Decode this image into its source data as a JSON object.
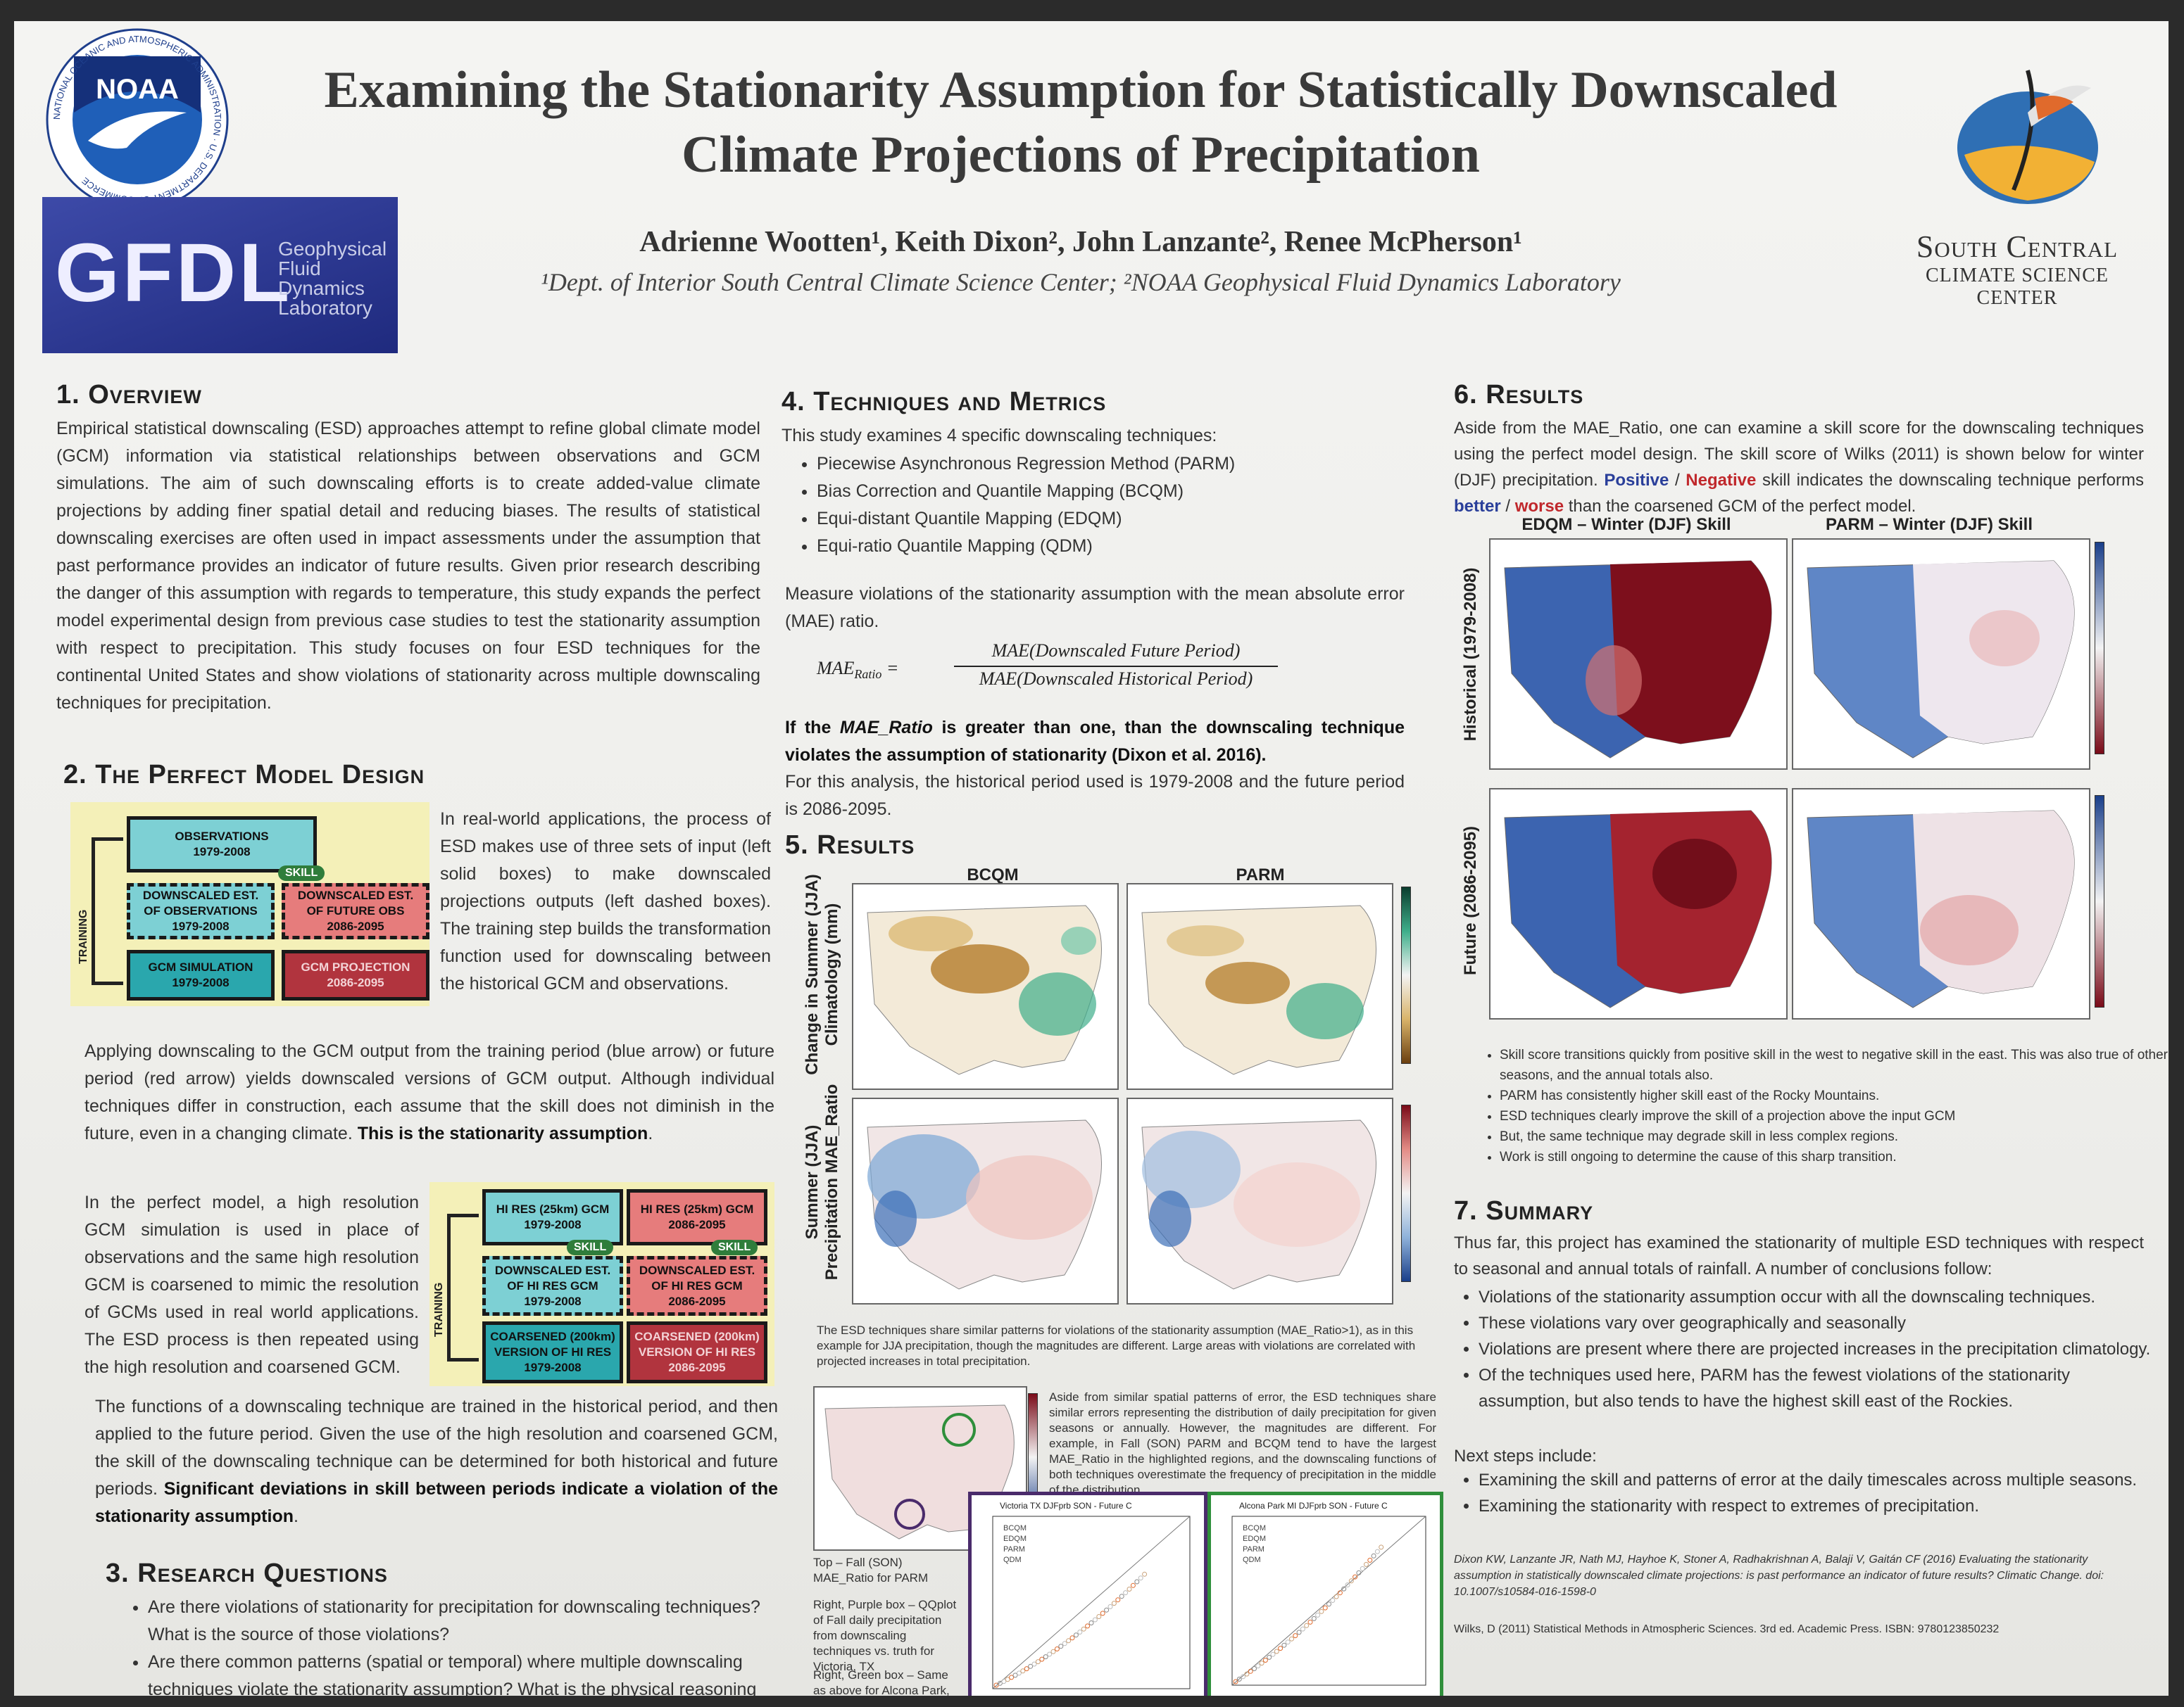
{
  "header": {
    "title_line1": "Examining the Stationarity Assumption for Statistically Downscaled",
    "title_line2": "Climate Projections of Precipitation",
    "authors": "Adrienne Wootten¹, Keith Dixon², John Lanzante², Renee McPherson¹",
    "affiliations": "¹Dept. of Interior South Central Climate Science Center; ²NOAA Geophysical Fluid Dynamics Laboratory"
  },
  "logos": {
    "noaa_text": "NOAA",
    "noaa_ring": "NATIONAL OCEANIC AND ATMOSPHERIC ADMINISTRATION · U.S. DEPARTMENT OF COMMERCE",
    "gfdl_text": "GFDL",
    "gfdl_line1": "Geophysical",
    "gfdl_line2": "Fluid",
    "gfdl_line3": "Dynamics",
    "gfdl_line4": "Laboratory",
    "sccsc_line1": "South Central",
    "sccsc_line2": "Climate Science Center"
  },
  "s1": {
    "heading": "1. Overview",
    "body": "Empirical statistical downscaling (ESD) approaches attempt to refine global climate model (GCM) information via statistical relationships between observations and GCM simulations. The aim of such downscaling efforts is to create added-value climate projections by adding finer spatial detail and reducing biases. The results of statistical downscaling exercises are often used in impact assessments under the assumption that past performance provides an indicator of future results. Given prior research describing the danger of this assumption with regards to temperature, this study expands the perfect model experimental design from previous case studies to test the stationarity assumption with respect to precipitation. This study focuses on four ESD techniques for the continental United States and show violations of stationarity across multiple downscaling techniques for precipitation."
  },
  "s2": {
    "heading": "2. The Perfect Model Design",
    "intro": "In real-world applications, the process of ESD makes use of three sets of input (left solid boxes) to make downscaled projections outputs (left dashed boxes). The training step builds the transformation function used for downscaling between the historical GCM and observations.",
    "para2_a": "Applying downscaling to the GCM output from the training period (blue arrow) or future period (red arrow) yields downscaled versions of GCM output. Although individual techniques differ in construction, each assume that the skill does not diminish in the future, even in a changing climate. ",
    "para2_b": "This is the stationarity assumption",
    "para2_c": ".",
    "para3": "In the perfect model, a high resolution GCM simulation is used in place of observations and the same high resolution GCM is coarsened to mimic the resolution of GCMs used in real world applications. The ESD process is then repeated using the high resolution and coarsened GCM.",
    "para4_a": "The functions of a downscaling technique are trained in the historical period, and then applied to the future period. Given the use of the high resolution and coarsened GCM, the skill of the downscaling technique can be determined for both historical and future periods. ",
    "para4_b": "Significant deviations in skill between periods indicate a violation of the stationarity assumption",
    "para4_c": ".",
    "diagram1": {
      "obs": "OBSERVATIONS\n1979-2008",
      "ds_obs": "DOWNSCALED EST.\nOF OBSERVATIONS\n1979-2008",
      "ds_fut": "DOWNSCALED EST.\nOF FUTURE OBS\n2086-2095",
      "gcm_sim": "GCM SIMULATION\n1979-2008",
      "gcm_proj": "GCM PROJECTION\n2086-2095",
      "skill": "SKILL",
      "training": "TRAINING"
    },
    "diagram2": {
      "hires_hist": "HI RES (25km) GCM\n1979-2008",
      "hires_fut": "HI RES (25km) GCM\n2086-2095",
      "ds_hist": "DOWNSCALED EST.\nOF HI RES GCM\n1979-2008",
      "ds_fut": "DOWNSCALED EST.\nOF HI RES GCM\n2086-2095",
      "coarse_hist": "COARSENED (200km)\nVERSION OF HI RES\n1979-2008",
      "coarse_fut": "COARSENED (200km)\nVERSION OF HI RES\n2086-2095",
      "skill": "SKILL",
      "training": "TRAINING"
    }
  },
  "s3": {
    "heading": "3. Research Questions",
    "items": [
      "Are there violations of stationarity for precipitation for downscaling techniques? What is the source of those violations?",
      "Are there common patterns (spatial or temporal) where multiple downscaling techniques violate the stationarity assumption? What is the physical reasoning behind these common patterns?"
    ]
  },
  "s4": {
    "heading": "4. Techniques and Metrics",
    "intro": "This study examines 4 specific downscaling techniques:",
    "items": [
      "Piecewise Asynchronous Regression Method (PARM)",
      "Bias Correction and Quantile Mapping (BCQM)",
      "Equi-distant Quantile Mapping (EDQM)",
      "Equi-ratio Quantile Mapping (QDM)"
    ],
    "measure": "Measure violations of the stationarity assumption with the mean absolute error (MAE) ratio.",
    "formula_lhs": "MAE",
    "formula_sub": "Ratio",
    "formula_num": "MAE(Downscaled Future Period)",
    "formula_den": "MAE(Downscaled Historical Period)",
    "rule_a": "If the ",
    "rule_b": "MAE_Ratio",
    "rule_c": " is greater than one, than the downscaling technique violates the assumption of stationarity (Dixon et al. 2016).",
    "periods": "For this analysis, the historical period used is 1979-2008 and the future period is 2086-2095."
  },
  "s5": {
    "heading": "5. Results",
    "col1": "BCQM",
    "col2": "PARM",
    "row1": "Change in Summer (JJA) Climatology (mm)",
    "row2": "Summer (JJA) Precipitation MAE_Ratio",
    "caption": "The ESD techniques share similar patterns for violations of the stationarity assumption (MAE_Ratio>1), as in this example for JJA precipitation, though the magnitudes are different. Large areas with violations are correlated with projected increases in total precipitation.",
    "side_text": "Aside from similar spatial patterns of error, the ESD techniques share similar errors representing the distribution of daily precipitation for given seasons or annually. However, the magnitudes are different. For example, in Fall (SON) PARM and BCQM tend to have the largest MAE_Ratio in the highlighted regions, and the downscaling functions of both techniques overestimate the frequency of precipitation in the middle of the distribution.",
    "top_label": "Top – Fall (SON) MAE_Ratio for PARM",
    "purple_label": "Right, Purple box – QQplot of Fall daily precipitation from downscaling techniques vs. truth for Victoria, TX",
    "green_label": "Right, Green box – Same as above for Alcona Park, MI",
    "qq_title1": "Victoria TX DJFprb SON - Future C",
    "qq_title2": "Alcona Park MI DJFprb SON - Future C",
    "qq_legend": [
      "BCQM",
      "EDQM",
      "PARM",
      "QDM"
    ]
  },
  "s6": {
    "heading": "6. Results",
    "intro_a": "Aside from the MAE_Ratio, one can examine a skill score for the downscaling techniques using the perfect model design. The skill score of Wilks (2011) is shown below for winter (DJF) precipitation. ",
    "positive": "Positive",
    "slash": " / ",
    "negative": "Negative",
    "intro_b": " skill indicates the downscaling technique performs ",
    "better": "better",
    "slash2": " / ",
    "worse": "worse",
    "intro_c": " than the coarsened GCM of the perfect model.",
    "col1": "EDQM – Winter (DJF) Skill",
    "col2": "PARM – Winter (DJF) Skill",
    "row1": "Historical (1979-2008)",
    "row2": "Future (2086-2095)",
    "items": [
      "Skill score transitions quickly from positive skill in the west to negative skill in the east. This was also true of other seasons, and the annual totals also.",
      "PARM has consistently higher skill east of the Rocky Mountains.",
      "ESD techniques clearly improve the skill of a projection above the input GCM",
      "But, the same technique may degrade skill in less complex regions.",
      "Work is still ongoing to determine the cause of this sharp transition."
    ]
  },
  "s7": {
    "heading": "7. Summary",
    "intro": "Thus far, this project has examined the stationarity of multiple ESD techniques with respect to seasonal and annual totals of rainfall. A number of conclusions follow:",
    "items": [
      "Violations of the stationarity assumption occur with all the downscaling techniques.",
      "These violations vary over geographically and seasonally",
      "Violations are present where there are projected increases in the precipitation climatology.",
      "Of the techniques used here, PARM has the fewest violations of the stationarity assumption, but also tends to have the highest skill east of the Rockies."
    ],
    "next": "Next steps include:",
    "next_items": [
      "Examining the skill and patterns of error at the daily timescales across multiple seasons.",
      "Examining the stationarity with respect to extremes of precipitation."
    ],
    "ref1": "Dixon KW, Lanzante JR, Nath MJ, Hayhoe K, Stoner A, Radhakrishnan A, Balaji V, Gaitán CF (2016) Evaluating the stationarity assumption in statistically downscaled climate projections: is past performance an indicator of future results? Climatic Change. doi: 10.1007/s10584-016-1598-0",
    "ref2": "Wilks, D (2011) Statistical Methods in Atmospheric Sciences. 3rd ed. Academic Press. ISBN: 9780123850232"
  },
  "colors": {
    "blue_text": "#2a3f9a",
    "red_text": "#c0282c"
  }
}
